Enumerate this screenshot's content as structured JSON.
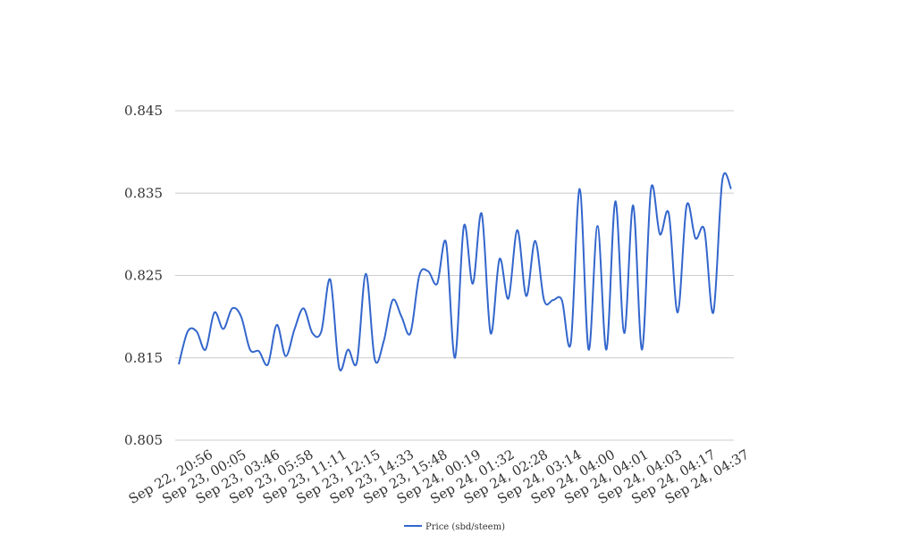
{
  "chart_data": {
    "type": "line",
    "title": "",
    "xlabel": "",
    "ylabel": "",
    "ylim": [
      0.805,
      0.845
    ],
    "yticks": [
      "0.805",
      "0.815",
      "0.825",
      "0.835",
      "0.845"
    ],
    "grid": true,
    "legend_position": "bottom",
    "x_tick_labels": [
      "Sep 22, 20:56",
      "Sep 23, 00:05",
      "Sep 23, 03:46",
      "Sep 23, 05:58",
      "Sep 23, 11:11",
      "Sep 23, 12:15",
      "Sep 23, 14:33",
      "Sep 23, 15:48",
      "Sep 24, 00:19",
      "Sep 24, 01:32",
      "Sep 24, 02:28",
      "Sep 24, 03:14",
      "Sep 24, 04:00",
      "Sep 24, 04:01",
      "Sep 24, 04:03",
      "Sep 24, 04:17",
      "Sep 24, 04:37"
    ],
    "series": [
      {
        "name": "Price (sbd/steem)",
        "color": "#3366cc",
        "values": [
          0.8142,
          0.8182,
          0.8182,
          0.816,
          0.8205,
          0.8185,
          0.821,
          0.82,
          0.816,
          0.8158,
          0.8142,
          0.819,
          0.8152,
          0.8185,
          0.821,
          0.818,
          0.8182,
          0.8245,
          0.8138,
          0.816,
          0.8145,
          0.8252,
          0.8148,
          0.817,
          0.822,
          0.82,
          0.818,
          0.825,
          0.8255,
          0.824,
          0.829,
          0.815,
          0.831,
          0.824,
          0.8325,
          0.818,
          0.827,
          0.8222,
          0.8305,
          0.8225,
          0.8292,
          0.822,
          0.822,
          0.822,
          0.8168,
          0.8355,
          0.816,
          0.831,
          0.816,
          0.834,
          0.818,
          0.8335,
          0.816,
          0.8355,
          0.83,
          0.8325,
          0.8205,
          0.8335,
          0.8295,
          0.8305,
          0.8205,
          0.8365,
          0.8355
        ]
      }
    ]
  }
}
